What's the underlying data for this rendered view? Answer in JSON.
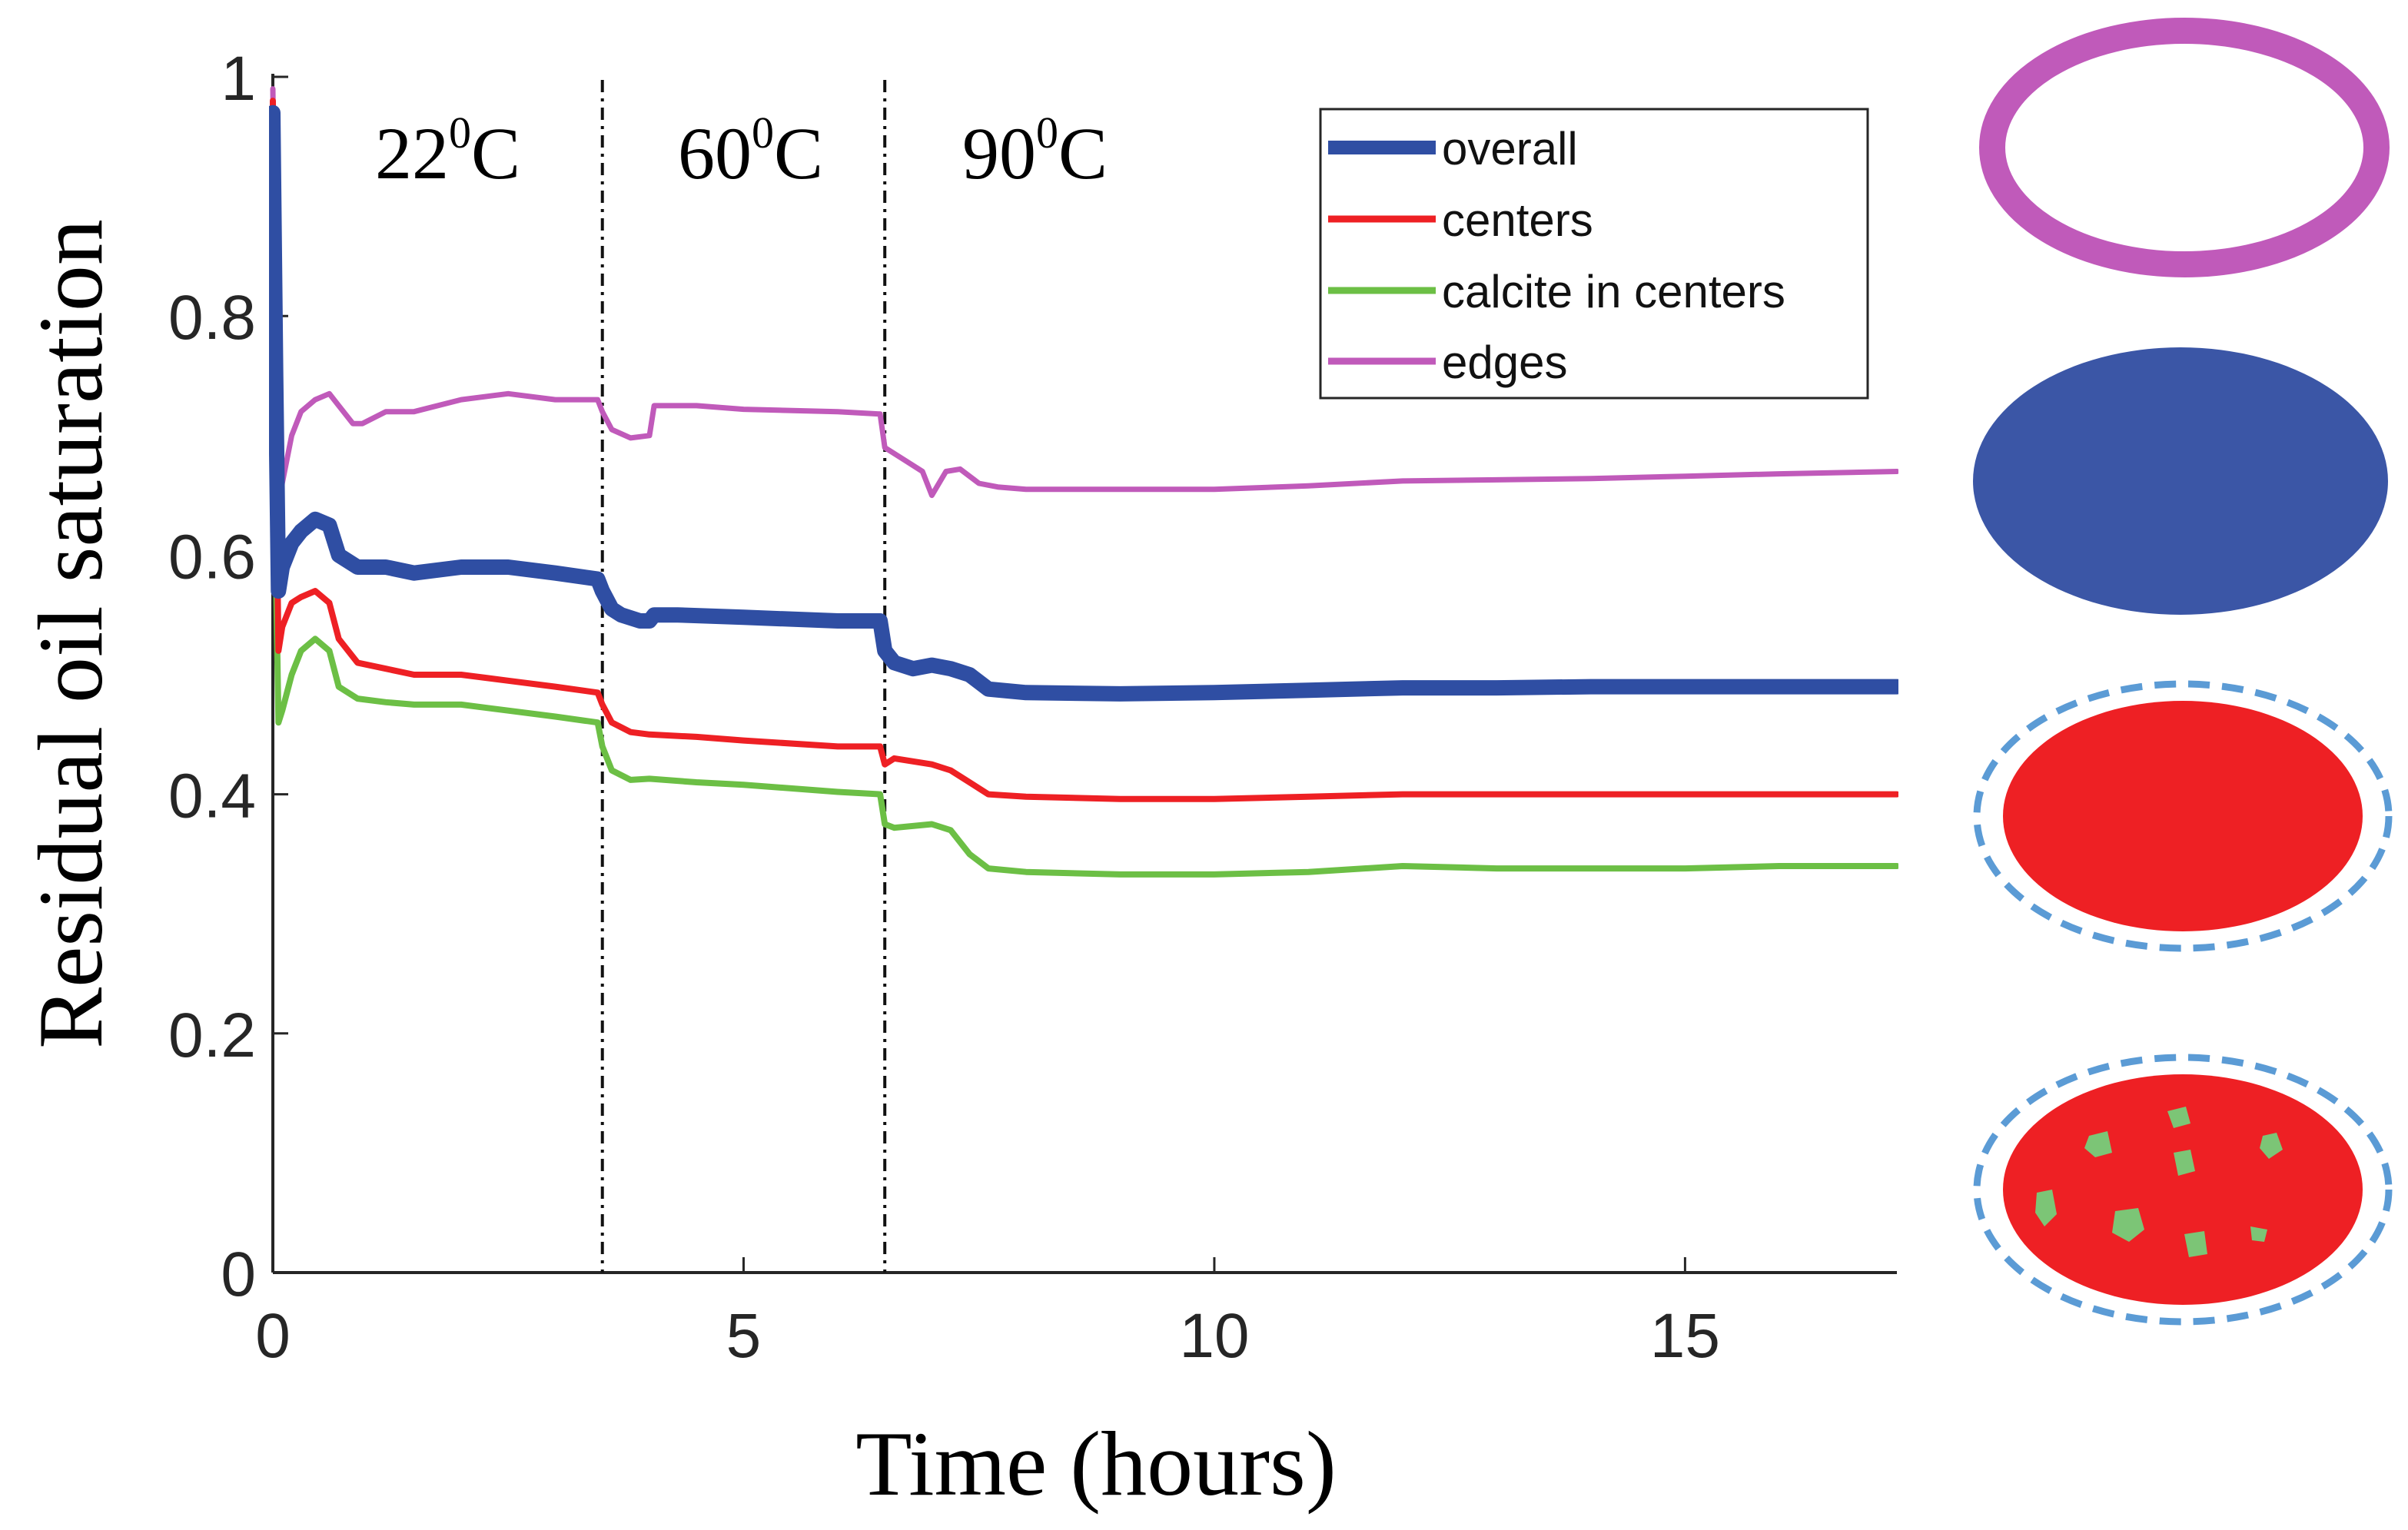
{
  "chart_data": {
    "type": "line",
    "title": "",
    "xlabel": "Time (hours)",
    "ylabel": "Residual oil saturation",
    "xlim": [
      0,
      17.25
    ],
    "ylim": [
      0,
      1
    ],
    "xticks": [
      0,
      5,
      10,
      15
    ],
    "yticks": [
      0,
      0.2,
      0.4,
      0.6,
      0.8,
      1
    ],
    "xtick_labels": [
      "0",
      "5",
      "10",
      "15"
    ],
    "ytick_labels": [
      "0",
      "0.2",
      "0.4",
      "0.6",
      "0.8",
      "1"
    ],
    "grid": false,
    "legend_position": "top-right",
    "regions": [
      {
        "base": "22",
        "sup": "0",
        "unit": "C",
        "x_start": 0,
        "x_end": 3.5
      },
      {
        "base": "60",
        "sup": "0",
        "unit": "C",
        "x_start": 3.5,
        "x_end": 6.5
      },
      {
        "base": "90",
        "sup": "0",
        "unit": "C",
        "x_start": 6.5,
        "x_end": 17.25
      }
    ],
    "dividers": [
      3.5,
      6.5
    ],
    "series": [
      {
        "name": "overall",
        "color": "#2f4ea3",
        "x": [
          0,
          0.03,
          0.06,
          0.1,
          0.2,
          0.3,
          0.45,
          0.6,
          0.7,
          0.9,
          1.2,
          1.5,
          2.0,
          2.5,
          3.0,
          3.45,
          3.5,
          3.6,
          3.7,
          3.9,
          4.0,
          4.05,
          4.3,
          5.0,
          6.0,
          6.45,
          6.5,
          6.6,
          6.8,
          7.0,
          7.2,
          7.4,
          7.6,
          8.0,
          9.0,
          10.0,
          11.0,
          12.0,
          13.0,
          14.0,
          15.0,
          16.0,
          17.25
        ],
        "y": [
          0.97,
          0.75,
          0.57,
          0.59,
          0.61,
          0.62,
          0.63,
          0.625,
          0.6,
          0.59,
          0.59,
          0.585,
          0.59,
          0.59,
          0.585,
          0.58,
          0.57,
          0.555,
          0.55,
          0.545,
          0.545,
          0.55,
          0.55,
          0.548,
          0.545,
          0.545,
          0.52,
          0.51,
          0.505,
          0.508,
          0.505,
          0.5,
          0.488,
          0.485,
          0.484,
          0.485,
          0.487,
          0.489,
          0.489,
          0.49,
          0.49,
          0.49,
          0.49
        ]
      },
      {
        "name": "centers",
        "color": "#ee2024",
        "x": [
          0,
          0.03,
          0.06,
          0.1,
          0.2,
          0.3,
          0.45,
          0.6,
          0.7,
          0.9,
          1.2,
          1.5,
          2.0,
          2.5,
          3.0,
          3.45,
          3.5,
          3.6,
          3.8,
          4.0,
          4.5,
          5.0,
          6.0,
          6.45,
          6.5,
          6.6,
          7.0,
          7.2,
          7.4,
          7.6,
          8.0,
          9.0,
          10.0,
          11.0,
          12.0,
          13.0,
          14.0,
          15.0,
          16.0,
          17.25
        ],
        "y": [
          0.98,
          0.7,
          0.52,
          0.54,
          0.56,
          0.565,
          0.57,
          0.56,
          0.53,
          0.51,
          0.505,
          0.5,
          0.5,
          0.495,
          0.49,
          0.485,
          0.475,
          0.46,
          0.452,
          0.45,
          0.448,
          0.445,
          0.44,
          0.44,
          0.425,
          0.43,
          0.425,
          0.42,
          0.41,
          0.4,
          0.398,
          0.396,
          0.396,
          0.398,
          0.4,
          0.4,
          0.4,
          0.4,
          0.4,
          0.4
        ]
      },
      {
        "name": "calcite in centers",
        "color": "#6cbf45",
        "x": [
          0,
          0.03,
          0.06,
          0.1,
          0.2,
          0.3,
          0.45,
          0.6,
          0.7,
          0.9,
          1.2,
          1.5,
          2.0,
          2.5,
          3.0,
          3.45,
          3.5,
          3.6,
          3.8,
          4.0,
          4.5,
          5.0,
          6.0,
          6.45,
          6.5,
          6.6,
          7.0,
          7.2,
          7.4,
          7.6,
          8.0,
          9.0,
          10.0,
          11.0,
          12.0,
          13.0,
          14.0,
          15.0,
          16.0,
          17.25
        ],
        "y": [
          0.96,
          0.6,
          0.46,
          0.47,
          0.5,
          0.52,
          0.53,
          0.52,
          0.49,
          0.48,
          0.477,
          0.475,
          0.475,
          0.47,
          0.465,
          0.46,
          0.44,
          0.42,
          0.412,
          0.413,
          0.41,
          0.408,
          0.402,
          0.4,
          0.375,
          0.372,
          0.375,
          0.37,
          0.35,
          0.338,
          0.335,
          0.333,
          0.333,
          0.335,
          0.34,
          0.338,
          0.338,
          0.338,
          0.34,
          0.34
        ]
      },
      {
        "name": "edges",
        "color": "#c05aba",
        "x": [
          0,
          0.03,
          0.06,
          0.1,
          0.2,
          0.3,
          0.45,
          0.6,
          0.7,
          0.85,
          0.95,
          1.2,
          1.5,
          2.0,
          2.5,
          3.0,
          3.45,
          3.5,
          3.6,
          3.8,
          4.0,
          4.05,
          4.5,
          5.0,
          6.0,
          6.45,
          6.5,
          6.7,
          6.9,
          7.0,
          7.15,
          7.3,
          7.5,
          7.7,
          8.0,
          9.0,
          10.0,
          11.0,
          12.0,
          13.0,
          14.0,
          15.0,
          16.0,
          17.25
        ],
        "y": [
          0.99,
          0.8,
          0.63,
          0.66,
          0.7,
          0.72,
          0.73,
          0.735,
          0.725,
          0.71,
          0.71,
          0.72,
          0.72,
          0.73,
          0.735,
          0.73,
          0.73,
          0.72,
          0.705,
          0.698,
          0.7,
          0.725,
          0.725,
          0.722,
          0.72,
          0.718,
          0.69,
          0.68,
          0.67,
          0.65,
          0.67,
          0.672,
          0.66,
          0.657,
          0.655,
          0.655,
          0.655,
          0.658,
          0.662,
          0.663,
          0.664,
          0.666,
          0.668,
          0.67
        ]
      }
    ]
  },
  "schematics": [
    {
      "label": "edges",
      "shape": "ring",
      "color": "#c05aba"
    },
    {
      "label": "overall",
      "shape": "filled-ellipse",
      "color": "#3b56a6"
    },
    {
      "label": "centers",
      "shape": "filled-ellipse-dashed-boundary",
      "color": "#ee2024",
      "boundary_color": "#5b9bd5"
    },
    {
      "label": "calcite in centers",
      "shape": "filled-ellipse-dashed-boundary-with-grains",
      "color": "#ee2024",
      "boundary_color": "#5b9bd5",
      "grain_color": "#7cc576"
    }
  ]
}
